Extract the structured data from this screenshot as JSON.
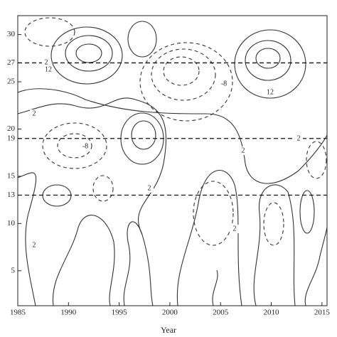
{
  "chart_data": {
    "type": "contour",
    "x_label": "Year",
    "xlim": [
      1985,
      2015.5
    ],
    "xticks": [
      1985,
      1990,
      1995,
      2000,
      2005,
      2010,
      2015
    ],
    "ylim": [
      1.3,
      32
    ],
    "yticks": [
      5,
      10,
      13,
      15,
      19,
      20,
      25,
      27,
      30
    ],
    "reference_lines": [
      13,
      19,
      27
    ],
    "contour_labels": [
      "2",
      "12",
      "2",
      "-8",
      "-8",
      "2",
      "2",
      "2",
      "2",
      "12",
      "2"
    ]
  }
}
